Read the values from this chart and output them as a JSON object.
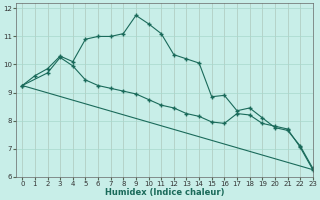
{
  "xlabel": "Humidex (Indice chaleur)",
  "xlim": [
    -0.5,
    23
  ],
  "ylim": [
    6,
    12.2
  ],
  "yticks": [
    6,
    7,
    8,
    9,
    10,
    11,
    12
  ],
  "xticks": [
    0,
    1,
    2,
    3,
    4,
    5,
    6,
    7,
    8,
    9,
    10,
    11,
    12,
    13,
    14,
    15,
    16,
    17,
    18,
    19,
    20,
    21,
    22,
    23
  ],
  "bg_color": "#c8eee8",
  "grid_color": "#a8d8cc",
  "line_color": "#1a6a5a",
  "line1_x": [
    0,
    1,
    2,
    3,
    4,
    5,
    6,
    7,
    8,
    9,
    10,
    11,
    12,
    13,
    14,
    15,
    16,
    17,
    18,
    19,
    20,
    21,
    22,
    23
  ],
  "line1_y": [
    9.25,
    9.6,
    9.85,
    10.3,
    10.1,
    10.9,
    11.0,
    11.0,
    11.1,
    11.75,
    11.45,
    11.1,
    10.35,
    10.2,
    10.05,
    8.85,
    8.9,
    8.35,
    8.45,
    8.1,
    7.75,
    7.65,
    7.1,
    6.3
  ],
  "line2_x": [
    0,
    2,
    3,
    4,
    5,
    6,
    7,
    8,
    9,
    10,
    11,
    12,
    13,
    14,
    15,
    16,
    17,
    18,
    19,
    20,
    21,
    22,
    23
  ],
  "line2_y": [
    9.25,
    9.7,
    10.25,
    9.95,
    9.45,
    9.25,
    9.15,
    9.05,
    8.95,
    8.75,
    8.55,
    8.45,
    8.25,
    8.15,
    7.95,
    7.9,
    8.25,
    8.2,
    7.9,
    7.8,
    7.7,
    7.05,
    6.25
  ],
  "line3_x": [
    0,
    23
  ],
  "line3_y": [
    9.25,
    6.25
  ]
}
